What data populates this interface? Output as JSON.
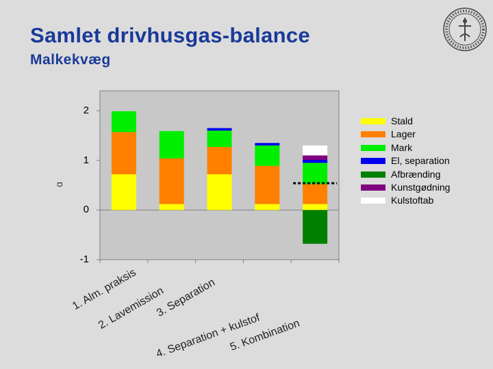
{
  "page": {
    "title": "Samlet drivhusgas-balance",
    "subtitle": "Malkekvæg"
  },
  "chart_data": {
    "type": "bar",
    "stacked": true,
    "ylim": [
      -1,
      2.4
    ],
    "yticks": [
      -1,
      0,
      1,
      2
    ],
    "ytick_labels": [
      "-1",
      "0",
      "1",
      "2"
    ],
    "grid": false,
    "legend_position": "right",
    "categories": [
      "1. Alm. praksis",
      "2. Lavemission",
      "3. Separation",
      "4. Separation + kulstof",
      "5. Kombination"
    ],
    "series": [
      {
        "name": "Stald",
        "color": "#ffff00",
        "values": [
          0.72,
          0.12,
          0.72,
          0.12,
          0.12
        ]
      },
      {
        "name": "Lager",
        "color": "#ff8000",
        "values": [
          0.85,
          0.92,
          0.55,
          0.77,
          0.4
        ]
      },
      {
        "name": "Mark",
        "color": "#00ee00",
        "values": [
          0.42,
          0.55,
          0.33,
          0.41,
          0.43
        ]
      },
      {
        "name": "El, separation",
        "color": "#0000ee",
        "values": [
          0,
          0,
          0.05,
          0.05,
          0.06
        ]
      },
      {
        "name": "Afbrænding",
        "color": "#008000",
        "values": [
          0,
          0,
          0,
          0,
          -0.68
        ]
      },
      {
        "name": "Kunstgødning",
        "color": "#800080",
        "values": [
          0,
          0,
          0,
          0,
          0.09
        ]
      },
      {
        "name": "Kulstoftab",
        "color": "#ffffff",
        "values": [
          0,
          0,
          0,
          0,
          0.2
        ]
      }
    ],
    "annotations": [
      {
        "type": "dashed-reference-line",
        "category_index": 4,
        "value": 0.54
      }
    ]
  }
}
